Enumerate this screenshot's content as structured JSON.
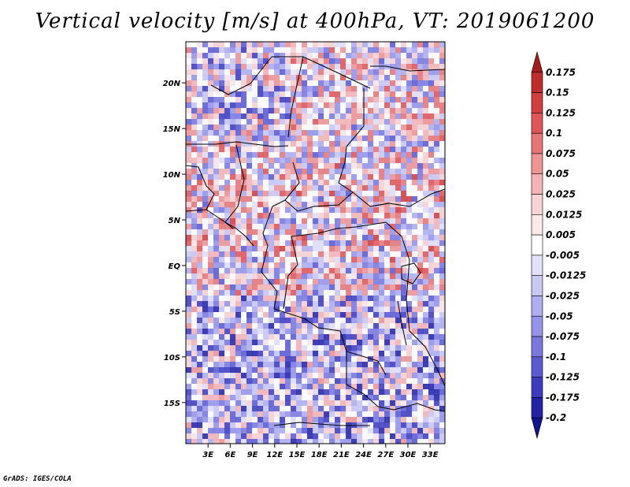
{
  "title": "Vertical velocity [m/s] at 400hPa, VT: 2019061200",
  "credit": "GrADS: IGES/COLA",
  "map": {
    "variable": "Vertical velocity",
    "units": "m/s",
    "level": "400hPa",
    "valid_time": "2019061200",
    "lon_range": [
      0,
      35
    ],
    "lat_range": [
      -19.5,
      24.5
    ],
    "lon_ticks": [
      "3E",
      "6E",
      "9E",
      "12E",
      "15E",
      "18E",
      "21E",
      "24E",
      "27E",
      "30E",
      "33E"
    ],
    "lat_ticks": [
      "20N",
      "15N",
      "10N",
      "5N",
      "EQ",
      "5S",
      "10S",
      "15S"
    ],
    "colors": {
      "ocean_bg": "#d9d9f7",
      "land_bg": "#e6e4f5",
      "border": "#000000"
    }
  },
  "colorbar": {
    "labels": [
      "0.175",
      "0.15",
      "0.125",
      "0.1",
      "0.075",
      "0.05",
      "0.025",
      "0.0125",
      "0.005",
      "-0.005",
      "-0.0125",
      "-0.025",
      "-0.05",
      "-0.075",
      "-0.1",
      "-0.125",
      "-0.175",
      "-0.2"
    ],
    "colors": [
      "#a51c1c",
      "#c02b2b",
      "#d23d3d",
      "#e05555",
      "#e87575",
      "#ef9494",
      "#f5b4b4",
      "#f9d2d2",
      "#fce9e9",
      "#ffffff",
      "#e1e1fa",
      "#c8c8f5",
      "#aeaef0",
      "#9494ea",
      "#7878e0",
      "#5a5ad2",
      "#3c3cc0",
      "#2323a8",
      "#14148c"
    ]
  }
}
